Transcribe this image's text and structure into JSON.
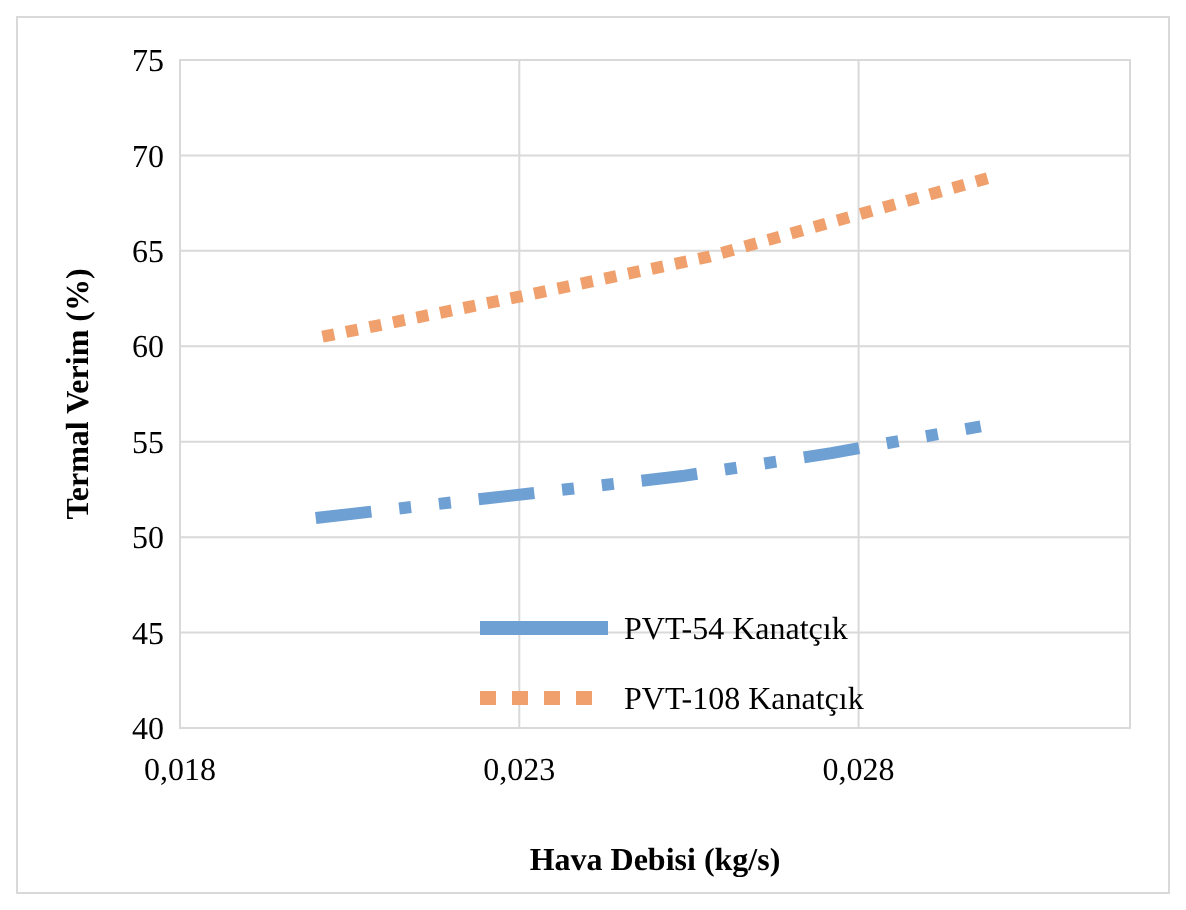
{
  "chart_data": {
    "type": "line",
    "xlabel": "Hava Debisi (kg/s)",
    "ylabel": "Termal Verim (%)",
    "xlim": [
      0.018,
      0.032
    ],
    "xticks": [
      {
        "value": 0.018,
        "label": "0,018"
      },
      {
        "value": 0.023,
        "label": "0,023"
      },
      {
        "value": 0.028,
        "label": "0,028"
      }
    ],
    "ylim": [
      40,
      75
    ],
    "yticks": [
      40,
      45,
      50,
      55,
      60,
      65,
      70,
      75
    ],
    "grid": true,
    "legend": "bottom",
    "series": [
      {
        "name": "PVT-54 Kanatçık",
        "color": "#6fa0d4",
        "line_style": "dashed",
        "x": [
          0.02,
          0.0222,
          0.0254,
          0.0276,
          0.0298
        ],
        "values": [
          51.0,
          51.9,
          53.2,
          54.4,
          55.8
        ]
      },
      {
        "name": "PVT-108 Kanatçık",
        "color": "#f0a06c",
        "line_style": "dotted",
        "x": [
          0.0201,
          0.023,
          0.0258,
          0.028,
          0.03
        ],
        "values": [
          60.5,
          62.6,
          64.7,
          66.9,
          68.9
        ]
      }
    ]
  }
}
